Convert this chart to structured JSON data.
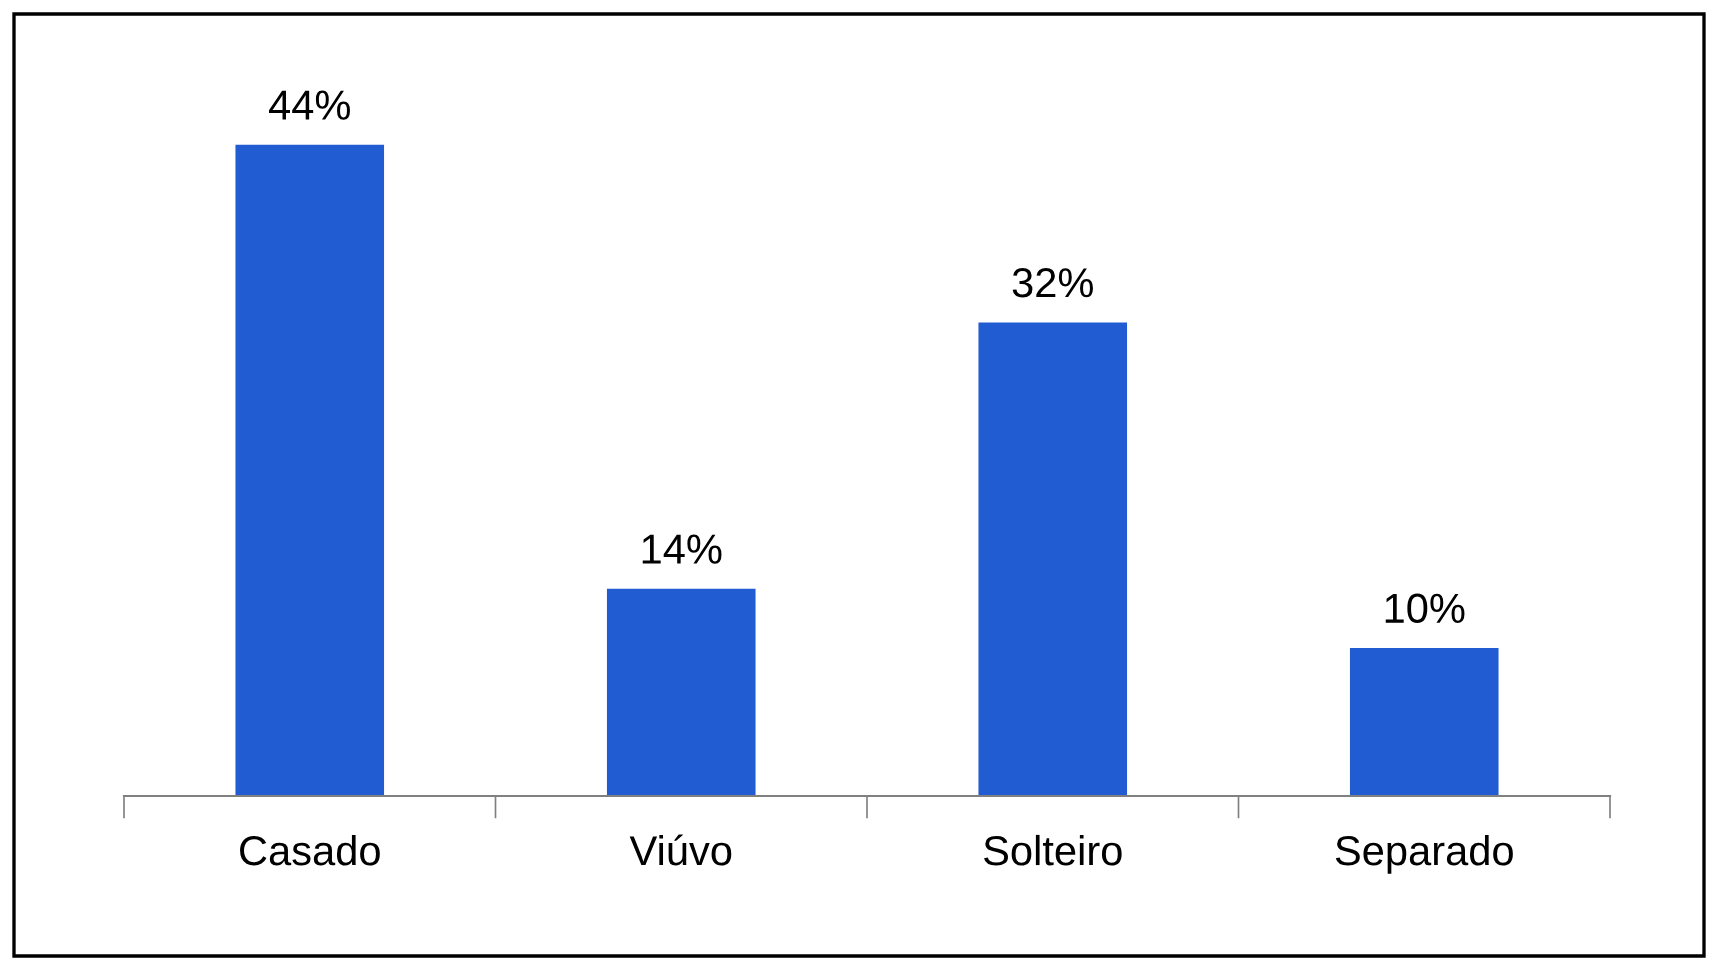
{
  "chart_data": {
    "type": "bar",
    "categories": [
      "Casado",
      "Viúvo",
      "Solteiro",
      "Separado"
    ],
    "values": [
      44,
      14,
      32,
      10
    ],
    "value_labels": [
      "44%",
      "14%",
      "32%",
      "10%"
    ],
    "color": "#215cd3",
    "tick_labels": "x",
    "grid": false,
    "legend": false
  }
}
